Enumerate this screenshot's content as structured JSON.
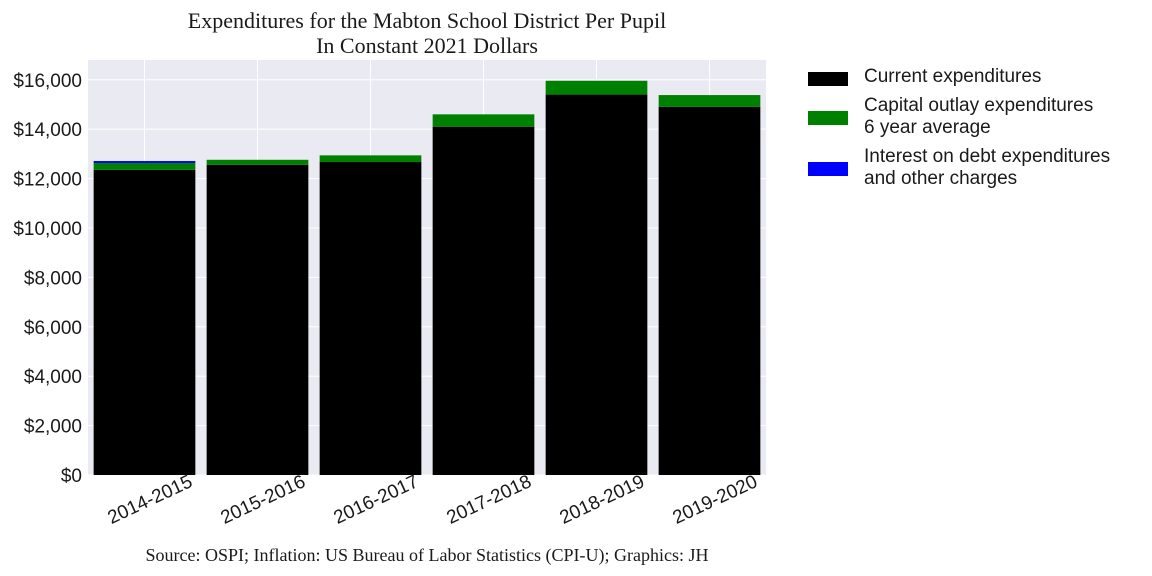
{
  "chart_data": {
    "type": "bar",
    "stacked": true,
    "title_lines": [
      "Expenditures for the Mabton School District Per Pupil",
      "In Constant 2021 Dollars"
    ],
    "xlabel": "",
    "ylabel": "",
    "categories": [
      "2014-2015",
      "2015-2016",
      "2016-2017",
      "2017-2018",
      "2018-2019",
      "2019-2020"
    ],
    "series": [
      {
        "name": "Current expenditures",
        "color": "#000000",
        "values": [
          12350,
          12560,
          12670,
          14100,
          15400,
          14900
        ]
      },
      {
        "name": "Capital outlay expenditures\n6 year average",
        "color": "#008000",
        "values": [
          280,
          200,
          270,
          500,
          560,
          480
        ]
      },
      {
        "name": "Interest on debt expenditures\nand other charges",
        "color": "#0000ff",
        "values": [
          80,
          0,
          0,
          0,
          0,
          0
        ]
      }
    ],
    "ylim": [
      0,
      16800
    ],
    "yticks": [
      0,
      2000,
      4000,
      6000,
      8000,
      10000,
      12000,
      14000,
      16000
    ],
    "ytick_labels": [
      "$0",
      "$2,000",
      "$4,000",
      "$6,000",
      "$8,000",
      "$10,000",
      "$12,000",
      "$14,000",
      "$16,000"
    ],
    "grid": true,
    "legend_position": "outside-right",
    "background_color": "#eaeaf2",
    "source": "Source: OSPI; Inflation: US Bureau of Labor Statistics (CPI-U); Graphics: JH"
  }
}
